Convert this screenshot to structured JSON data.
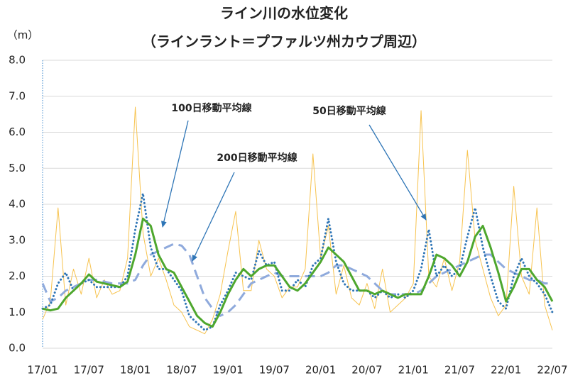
{
  "chart_data": {
    "type": "line",
    "title": "ライン川の水位変化",
    "subtitle": "（ラインラント＝プファルツ州カウプ周辺）",
    "y_label": "（m）",
    "categories": [
      "17/01",
      null,
      null,
      null,
      null,
      null,
      "17/07",
      null,
      null,
      null,
      null,
      null,
      "18/01",
      null,
      null,
      null,
      null,
      null,
      "18/07",
      null,
      null,
      null,
      null,
      null,
      "19/01",
      null,
      null,
      null,
      null,
      null,
      "19/07",
      null,
      null,
      null,
      null,
      null,
      "20/01",
      null,
      null,
      null,
      null,
      null,
      "20/07",
      null,
      null,
      null,
      null,
      null,
      "21/01",
      null,
      null,
      null,
      null,
      null,
      "21/07",
      null,
      null,
      null,
      null,
      null,
      "22/01",
      null,
      null,
      null,
      null,
      null,
      "22/07"
    ],
    "series": [
      {
        "color": "#f7c34f",
        "style": "thin",
        "values": [
          0.8,
          1.3,
          3.9,
          1.2,
          2.2,
          1.5,
          2.5,
          1.4,
          1.9,
          1.5,
          1.6,
          2.5,
          6.7,
          3.2,
          2.0,
          2.5,
          1.9,
          1.2,
          1.0,
          0.6,
          0.5,
          0.4,
          0.8,
          1.5,
          2.7,
          3.8,
          1.6,
          1.6,
          3.0,
          2.2,
          2.0,
          1.4,
          1.7,
          1.7,
          2.2,
          5.4,
          2.5,
          3.4,
          1.5,
          2.3,
          1.4,
          1.2,
          1.8,
          1.1,
          2.2,
          1.0,
          1.2,
          1.4,
          1.8,
          6.6,
          2.0,
          1.7,
          2.5,
          1.6,
          2.4,
          5.5,
          3.0,
          2.2,
          1.4,
          0.9,
          1.2,
          4.5,
          2.0,
          1.5,
          3.9,
          1.2,
          0.5
        ]
      },
      {
        "name": "200日移動平均線",
        "color": "#8faadc",
        "style": "dashed",
        "values": [
          1.8,
          1.3,
          1.4,
          1.6,
          1.7,
          1.8,
          1.9,
          1.9,
          1.85,
          1.8,
          1.8,
          1.8,
          1.9,
          2.3,
          2.6,
          2.7,
          2.8,
          2.9,
          2.85,
          2.6,
          2.0,
          1.4,
          1.1,
          0.9,
          1.0,
          1.2,
          1.5,
          1.8,
          1.9,
          2.0,
          2.1,
          2.0,
          2.0,
          2.0,
          2.0,
          2.0,
          2.0,
          2.1,
          2.3,
          2.3,
          2.2,
          2.1,
          2.0,
          1.8,
          1.6,
          1.5,
          1.5,
          1.5,
          1.5,
          1.6,
          1.8,
          2.0,
          2.1,
          2.2,
          2.3,
          2.4,
          2.5,
          2.6,
          2.6,
          2.4,
          2.2,
          2.1,
          2.0,
          1.9,
          1.9,
          1.8,
          1.8
        ]
      },
      {
        "name": "50日移動平均線",
        "color": "#2e75b6",
        "style": "dotted",
        "values": [
          1.1,
          1.2,
          1.8,
          2.1,
          1.6,
          1.8,
          1.9,
          1.7,
          1.7,
          1.7,
          1.7,
          2.0,
          3.3,
          4.3,
          2.8,
          2.2,
          2.2,
          1.9,
          1.6,
          0.9,
          0.7,
          0.5,
          0.6,
          1.2,
          1.6,
          2.1,
          2.0,
          1.9,
          2.7,
          2.3,
          2.4,
          1.6,
          1.6,
          1.9,
          1.7,
          2.3,
          2.5,
          3.6,
          2.4,
          1.8,
          1.6,
          1.6,
          1.6,
          1.4,
          1.6,
          1.4,
          1.5,
          1.4,
          1.6,
          2.2,
          3.3,
          2.0,
          2.3,
          2.0,
          2.2,
          3.1,
          3.9,
          2.8,
          2.0,
          1.3,
          1.1,
          2.0,
          2.5,
          2.0,
          1.8,
          1.5,
          1.0
        ]
      },
      {
        "name": "100日移動平均線",
        "color": "#4ea72e",
        "style": "thick",
        "values": [
          1.1,
          1.05,
          1.1,
          1.4,
          1.6,
          1.8,
          2.05,
          1.85,
          1.8,
          1.75,
          1.7,
          1.85,
          2.6,
          3.6,
          3.4,
          2.6,
          2.2,
          2.1,
          1.7,
          1.3,
          0.9,
          0.7,
          0.6,
          1.0,
          1.5,
          1.9,
          2.2,
          2.0,
          2.2,
          2.3,
          2.3,
          2.0,
          1.7,
          1.6,
          1.8,
          2.1,
          2.4,
          2.8,
          2.6,
          2.4,
          2.0,
          1.6,
          1.6,
          1.5,
          1.6,
          1.5,
          1.4,
          1.5,
          1.5,
          1.5,
          2.0,
          2.6,
          2.5,
          2.3,
          2.0,
          2.4,
          3.1,
          3.4,
          2.8,
          2.1,
          1.3,
          1.7,
          2.2,
          2.2,
          1.9,
          1.7,
          1.3
        ]
      }
    ],
    "ylim": [
      0,
      8
    ],
    "yticks": [
      {
        "value": 0,
        "label": "0.0"
      },
      {
        "value": 1,
        "label": "1.0"
      },
      {
        "value": 2,
        "label": "2.0"
      },
      {
        "value": 3,
        "label": "3.0"
      },
      {
        "value": 4,
        "label": "4.0"
      },
      {
        "value": 5,
        "label": "5.0"
      },
      {
        "value": 6,
        "label": "6.0"
      },
      {
        "value": 7,
        "label": "7.0"
      },
      {
        "value": 8,
        "label": "8.0"
      }
    ],
    "grid": true
  }
}
